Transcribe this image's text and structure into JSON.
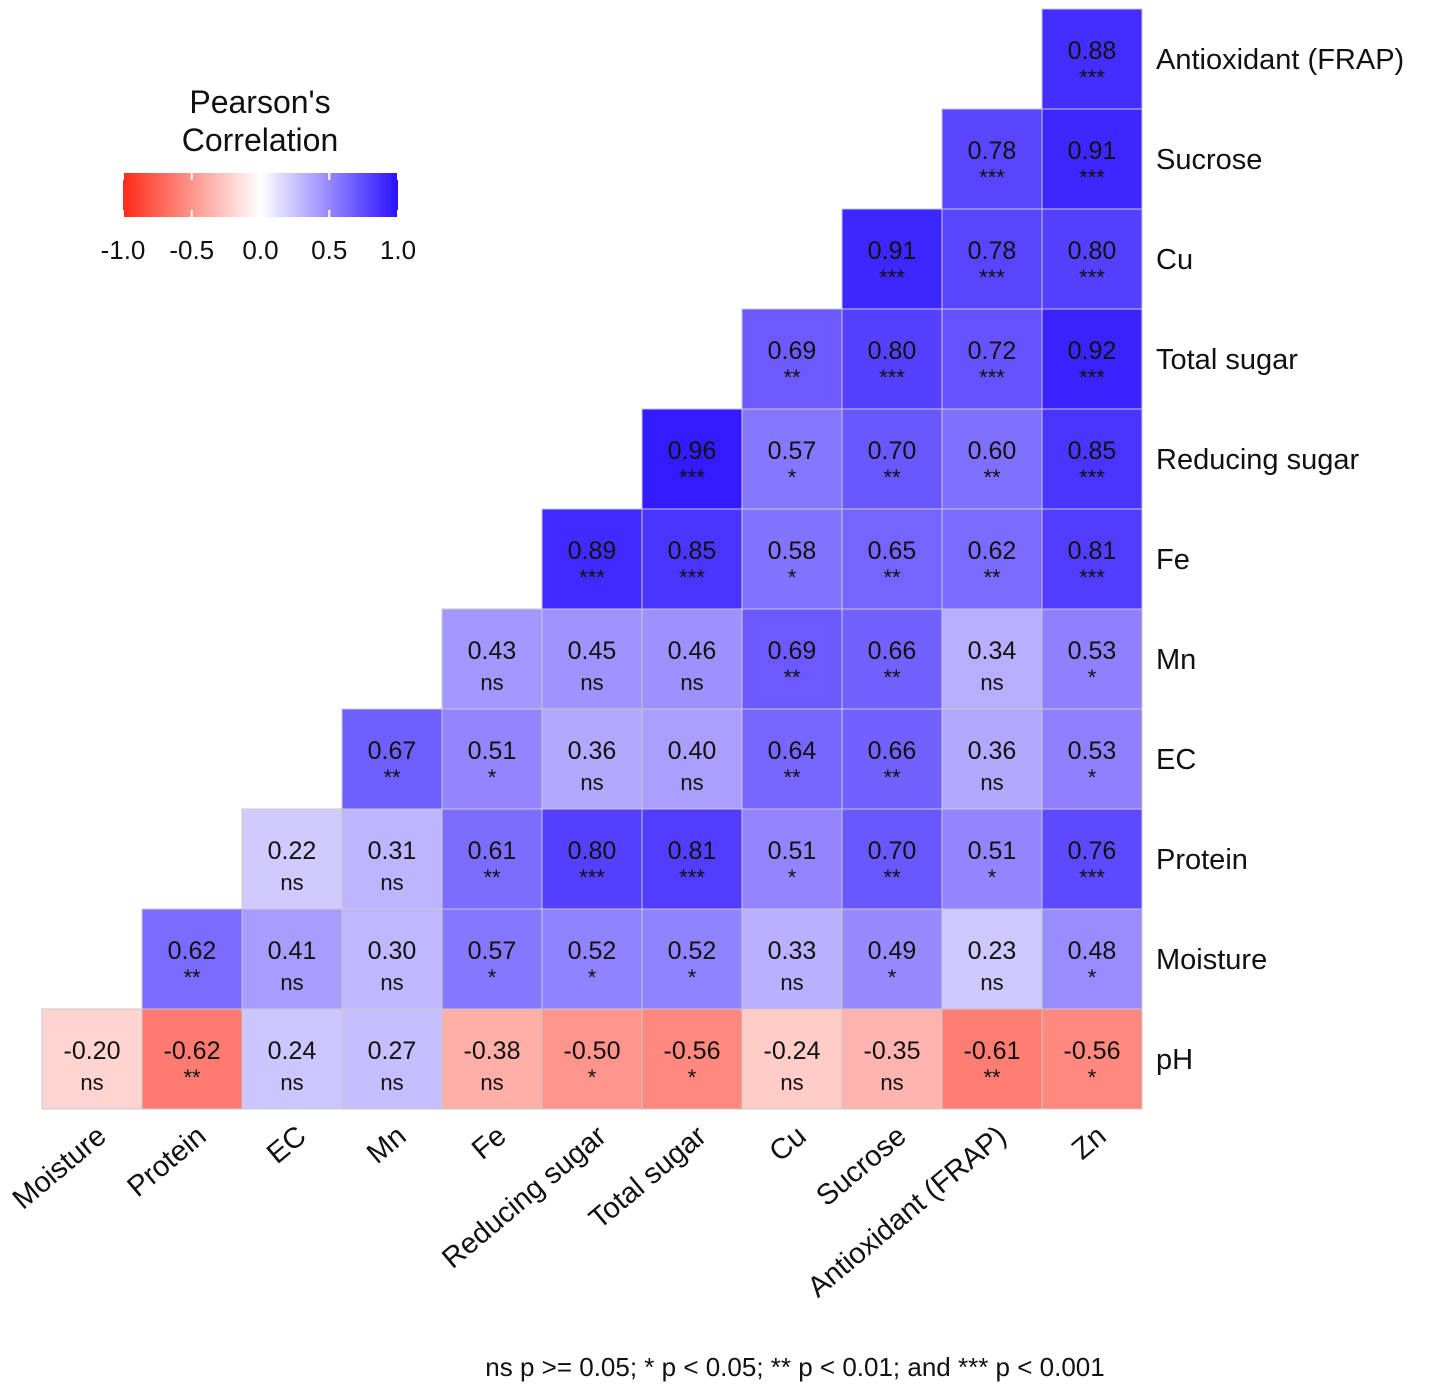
{
  "chart_data": {
    "type": "heatmap",
    "title": "",
    "legend": {
      "title_line1": "Pearson's",
      "title_line2": "Correlation",
      "ticks": [
        "-1.0",
        "-0.5",
        "0.0",
        "0.5",
        "1.0"
      ],
      "range": [
        -1,
        1
      ],
      "low_color": "#ff2a1a",
      "mid_color": "#ffffff",
      "high_color": "#2a10ff",
      "placement": "top-left"
    },
    "x_labels": [
      "Moisture",
      "Protein",
      "EC",
      "Mn",
      "Fe",
      "Reducing sugar",
      "Total sugar",
      "Cu",
      "Sucrose",
      "Antioxidant (FRAP)",
      "Zn"
    ],
    "y_labels": [
      "Antioxidant (FRAP)",
      "Sucrose",
      "Cu",
      "Total sugar",
      "Reducing sugar",
      "Fe",
      "Mn",
      "EC",
      "Protein",
      "Moisture",
      "pH"
    ],
    "rows": [
      {
        "values": [
          0.88
        ],
        "sig": [
          "***"
        ],
        "labels": [
          "0.88"
        ]
      },
      {
        "values": [
          0.78,
          0.91
        ],
        "sig": [
          "***",
          "***"
        ],
        "labels": [
          "0.78",
          "0.91"
        ]
      },
      {
        "values": [
          0.91,
          0.78,
          0.8
        ],
        "sig": [
          "***",
          "***",
          "***"
        ],
        "labels": [
          "0.91",
          "0.78",
          "0.80"
        ]
      },
      {
        "values": [
          0.69,
          0.8,
          0.72,
          0.92
        ],
        "sig": [
          "**",
          "***",
          "***",
          "***"
        ],
        "labels": [
          "0.69",
          "0.80",
          "0.72",
          "0.92"
        ]
      },
      {
        "values": [
          0.96,
          0.57,
          0.7,
          0.6,
          0.85
        ],
        "sig": [
          "***",
          "*",
          "**",
          "**",
          "***"
        ],
        "labels": [
          "0.96",
          "0.57",
          "0.70",
          "0.60",
          "0.85"
        ]
      },
      {
        "values": [
          0.89,
          0.85,
          0.58,
          0.65,
          0.62,
          0.81
        ],
        "sig": [
          "***",
          "***",
          "*",
          "**",
          "**",
          "***"
        ],
        "labels": [
          "0.89",
          "0.85",
          "0.58",
          "0.65",
          "0.62",
          "0.81"
        ]
      },
      {
        "values": [
          0.43,
          0.45,
          0.46,
          0.69,
          0.66,
          0.34,
          0.53
        ],
        "sig": [
          "ns",
          "ns",
          "ns",
          "**",
          "**",
          "ns",
          "*"
        ],
        "labels": [
          "0.43",
          "0.45",
          "0.46",
          "0.69",
          "0.66",
          "0.34",
          "0.53"
        ]
      },
      {
        "values": [
          0.67,
          0.51,
          0.36,
          0.4,
          0.64,
          0.66,
          0.36,
          0.53
        ],
        "sig": [
          "**",
          "*",
          "ns",
          "ns",
          "**",
          "**",
          "ns",
          "*"
        ],
        "labels": [
          "0.67",
          "0.51",
          "0.36",
          "0.40",
          "0.64",
          "0.66",
          "0.36",
          "0.53"
        ]
      },
      {
        "values": [
          0.22,
          0.31,
          0.61,
          0.8,
          0.81,
          0.51,
          0.7,
          0.51,
          0.76
        ],
        "sig": [
          "ns",
          "ns",
          "**",
          "***",
          "***",
          "*",
          "**",
          "*",
          "***"
        ],
        "labels": [
          "0.22",
          "0.31",
          "0.61",
          "0.80",
          "0.81",
          "0.51",
          "0.70",
          "0.51",
          "0.76"
        ]
      },
      {
        "values": [
          0.62,
          0.41,
          0.3,
          0.57,
          0.52,
          0.52,
          0.33,
          0.49,
          0.23,
          0.48
        ],
        "sig": [
          "**",
          "ns",
          "ns",
          "*",
          "*",
          "*",
          "ns",
          "*",
          "ns",
          "*"
        ],
        "labels": [
          "0.62",
          "0.41",
          "0.30",
          "0.57",
          "0.52",
          "0.52",
          "0.33",
          "0.49",
          "0.23",
          "0.48"
        ]
      },
      {
        "values": [
          -0.2,
          -0.62,
          0.24,
          0.27,
          -0.38,
          -0.5,
          -0.56,
          -0.24,
          -0.35,
          -0.61,
          -0.56
        ],
        "sig": [
          "ns",
          "**",
          "ns",
          "ns",
          "ns",
          "*",
          "*",
          "ns",
          "ns",
          "**",
          "*"
        ],
        "labels": [
          "-0.20",
          "-0.62",
          "0.24",
          "0.27",
          "-0.38",
          "-0.50",
          "-0.56",
          "-0.24",
          "-0.35",
          "-0.61",
          "-0.56"
        ]
      }
    ],
    "caption": "ns p >= 0.05; * p < 0.05; ** p < 0.01; and *** p < 0.001"
  }
}
